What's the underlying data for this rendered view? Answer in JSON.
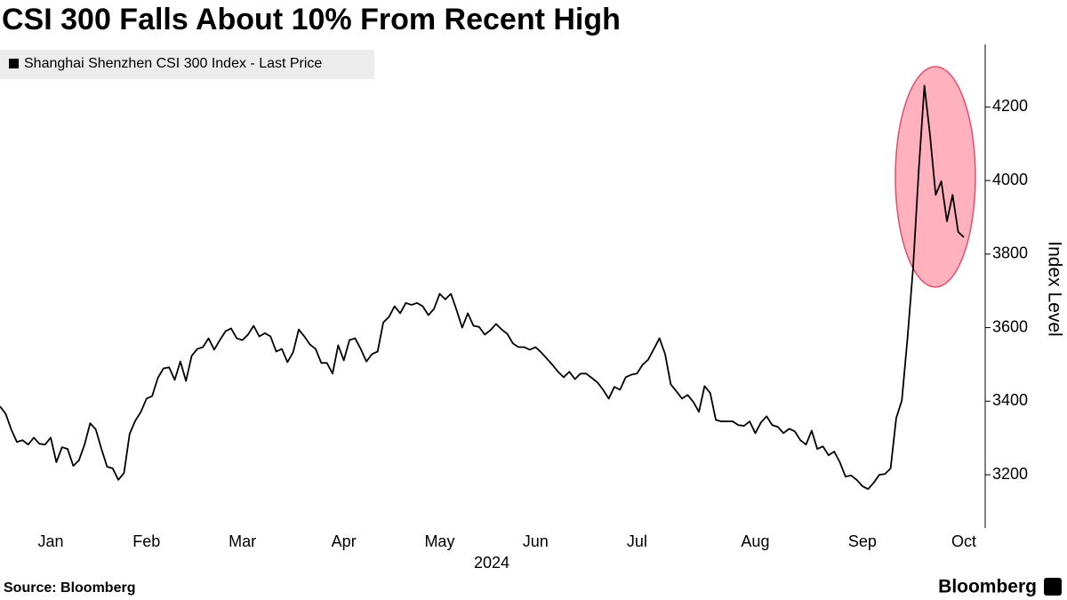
{
  "chart_data": {
    "type": "line",
    "title": "CSI 300 Falls About 10% From Recent High",
    "xlabel": "2024",
    "ylabel": "Index Level",
    "source": "Source: Bloomberg",
    "brand": "Bloomberg",
    "categories": [
      null,
      null,
      null,
      null,
      null,
      null,
      null,
      null,
      null,
      "Jan",
      null,
      null,
      null,
      null,
      null,
      null,
      null,
      null,
      null,
      null,
      null,
      null,
      null,
      null,
      null,
      null,
      "Feb",
      null,
      null,
      null,
      null,
      null,
      null,
      null,
      null,
      null,
      null,
      null,
      null,
      null,
      null,
      null,
      null,
      "Mar",
      null,
      null,
      null,
      null,
      null,
      null,
      null,
      null,
      null,
      null,
      null,
      null,
      null,
      null,
      null,
      null,
      null,
      "Apr",
      null,
      null,
      null,
      null,
      null,
      null,
      null,
      null,
      null,
      null,
      null,
      null,
      null,
      null,
      null,
      null,
      "May",
      null,
      null,
      null,
      null,
      null,
      null,
      null,
      null,
      null,
      null,
      null,
      null,
      null,
      null,
      null,
      null,
      "Jun",
      null,
      null,
      null,
      null,
      null,
      null,
      null,
      null,
      null,
      null,
      null,
      null,
      null,
      null,
      null,
      null,
      null,
      "Jul",
      null,
      null,
      null,
      null,
      null,
      null,
      null,
      null,
      null,
      null,
      null,
      null,
      null,
      null,
      null,
      null,
      null,
      null,
      null,
      null,
      "Aug",
      null,
      null,
      null,
      null,
      null,
      null,
      null,
      null,
      null,
      null,
      null,
      null,
      null,
      null,
      null,
      null,
      null,
      null,
      "Sep",
      null,
      null,
      null,
      null,
      null,
      null,
      null,
      null,
      null,
      null,
      null,
      null,
      null,
      null,
      null,
      null,
      null,
      "Oct"
    ],
    "series": [
      {
        "name": "Shanghai Shenzhen CSI 300 Index - Last Price",
        "color": "#000000",
        "values": [
          3386,
          3366,
          3323,
          3289,
          3294,
          3282,
          3301,
          3284,
          3282,
          3301,
          3234,
          3275,
          3270,
          3224,
          3239,
          3282,
          3340,
          3323,
          3270,
          3222,
          3217,
          3186,
          3205,
          3311,
          3347,
          3371,
          3407,
          3414,
          3463,
          3489,
          3492,
          3458,
          3508,
          3455,
          3523,
          3542,
          3547,
          3571,
          3540,
          3566,
          3590,
          3598,
          3571,
          3566,
          3581,
          3605,
          3576,
          3585,
          3576,
          3535,
          3542,
          3506,
          3533,
          3595,
          3576,
          3554,
          3542,
          3504,
          3504,
          3475,
          3552,
          3511,
          3566,
          3571,
          3542,
          3508,
          3528,
          3535,
          3614,
          3629,
          3658,
          3639,
          3667,
          3662,
          3667,
          3658,
          3634,
          3651,
          3692,
          3677,
          3692,
          3648,
          3600,
          3639,
          3605,
          3602,
          3581,
          3593,
          3610,
          3595,
          3583,
          3557,
          3547,
          3547,
          3540,
          3547,
          3533,
          3516,
          3499,
          3480,
          3465,
          3480,
          3460,
          3475,
          3475,
          3463,
          3451,
          3431,
          3407,
          3439,
          3431,
          3465,
          3472,
          3475,
          3499,
          3513,
          3542,
          3571,
          3528,
          3446,
          3427,
          3407,
          3417,
          3398,
          3371,
          3441,
          3422,
          3349,
          3345,
          3345,
          3345,
          3335,
          3333,
          3345,
          3313,
          3342,
          3359,
          3335,
          3330,
          3313,
          3325,
          3318,
          3294,
          3282,
          3320,
          3270,
          3277,
          3253,
          3263,
          3234,
          3195,
          3198,
          3186,
          3169,
          3161,
          3178,
          3200,
          3202,
          3217,
          3354,
          3402,
          3571,
          3764,
          4029,
          4258,
          4123,
          3961,
          3998,
          3889,
          3961,
          3860,
          3846
        ]
      }
    ],
    "ylim": [
      3060,
      4370
    ],
    "yticks": [
      3200,
      3400,
      3600,
      3800,
      4000,
      4200
    ],
    "legend": "top-left"
  }
}
